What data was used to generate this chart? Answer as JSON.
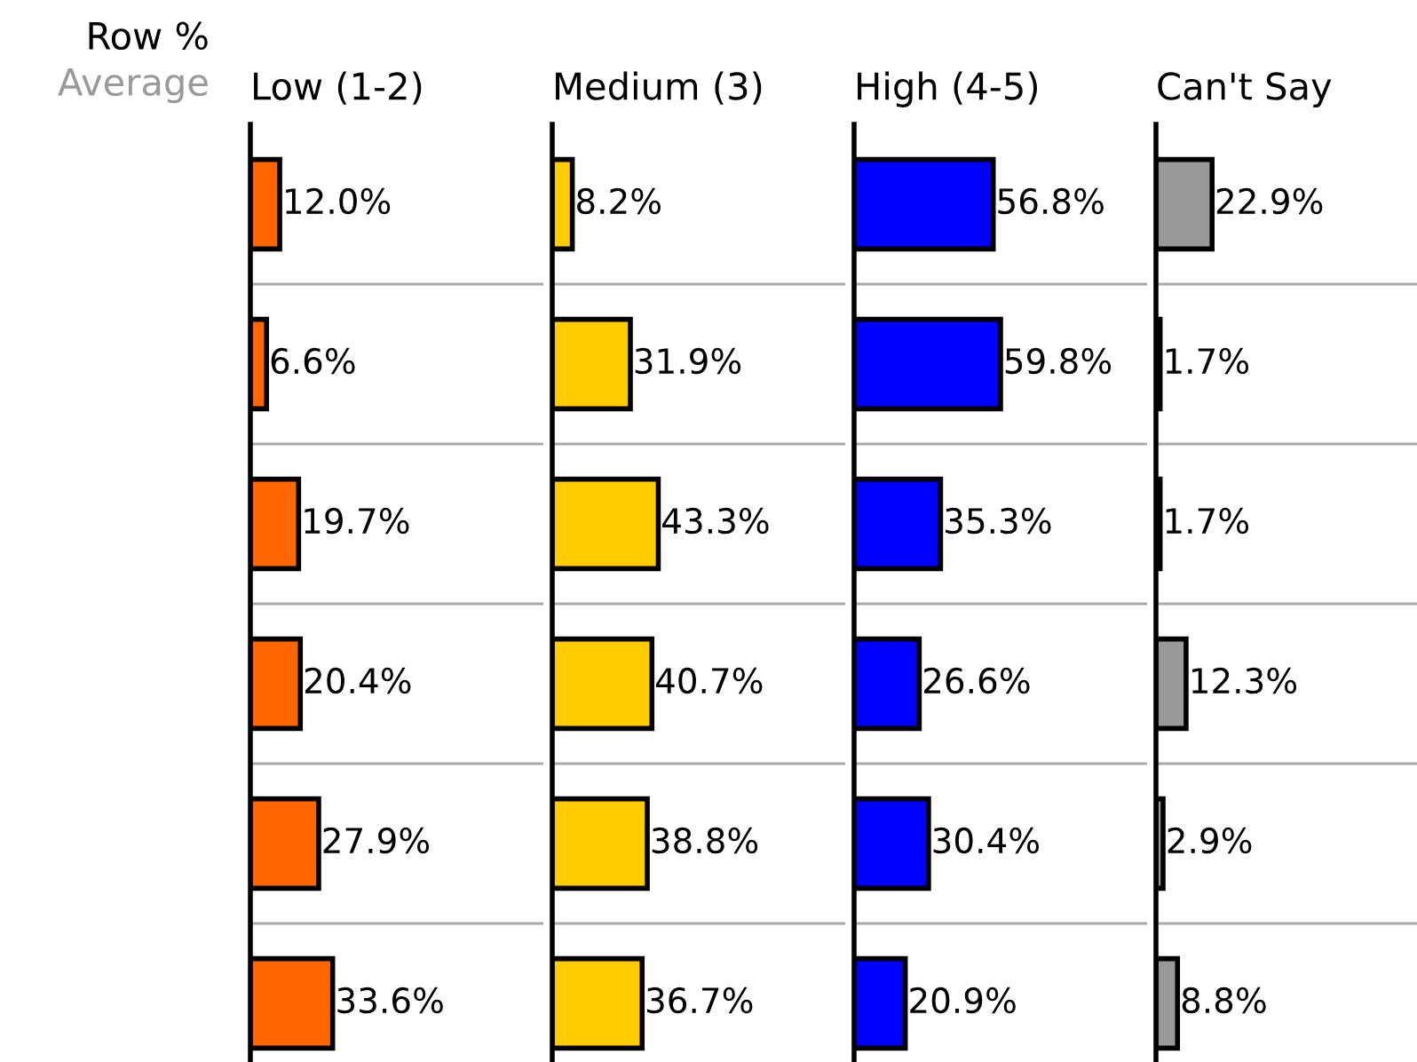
{
  "chart_data": [
    {
      "type": "bar",
      "orientation": "horizontal",
      "title": "Low (1-2)",
      "annotations": [
        "Row %",
        "Average"
      ],
      "categories": [
        null,
        null,
        null,
        null,
        null,
        null
      ],
      "grid": "y",
      "data_labels": false,
      "values": [
        12.0,
        6.6,
        19.7,
        20.4,
        27.9,
        33.6
      ],
      "value_labels": [
        "12.0%",
        "6.6%",
        "19.7%",
        "20.4%",
        "27.9%",
        "33.6%"
      ],
      "color": "#ff6600"
    },
    {
      "type": "bar",
      "orientation": "horizontal",
      "title": "Medium (3)",
      "categories": [
        null,
        null,
        null,
        null,
        null,
        null
      ],
      "grid": "y",
      "data_labels": false,
      "values": [
        8.2,
        31.9,
        43.3,
        40.7,
        38.8,
        36.7
      ],
      "value_labels": [
        "8.2%",
        "31.9%",
        "43.3%",
        "40.7%",
        "38.8%",
        "36.7%"
      ],
      "color": "#ffcc00"
    },
    {
      "type": "bar",
      "orientation": "horizontal",
      "title": "High (4-5)",
      "categories": [
        null,
        null,
        null,
        null,
        null,
        null
      ],
      "grid": "y",
      "data_labels": false,
      "values": [
        56.8,
        59.8,
        35.3,
        26.6,
        30.4,
        20.9
      ],
      "value_labels": [
        "56.8%",
        "59.8%",
        "35.3%",
        "26.6%",
        "30.4%",
        "20.9%"
      ],
      "color": "#0000ff"
    },
    {
      "type": "bar",
      "orientation": "horizontal",
      "title": "Can't Say",
      "categories": [
        null,
        null,
        null,
        null,
        null,
        null
      ],
      "grid": "y",
      "data_labels": false,
      "values": [
        22.9,
        1.7,
        1.7,
        12.3,
        2.9,
        8.8
      ],
      "value_labels": [
        "22.9%",
        "1.7%",
        "1.7%",
        "12.3%",
        "2.9%",
        "8.8%"
      ],
      "color": "#999999"
    }
  ]
}
